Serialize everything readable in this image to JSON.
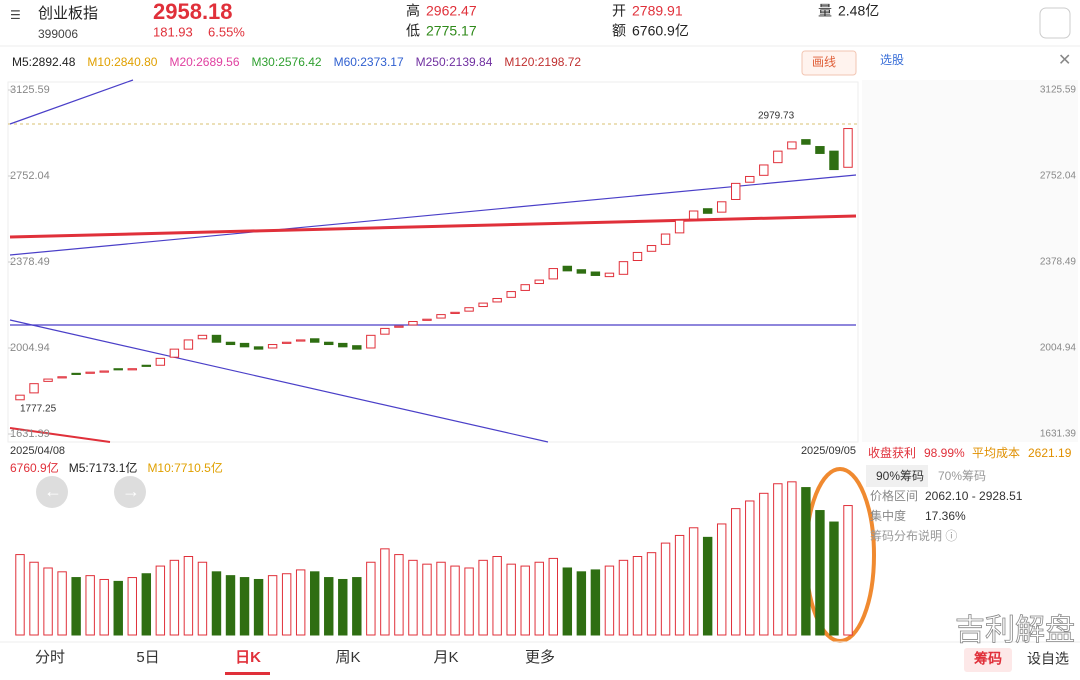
{
  "header": {
    "name": "创业板指",
    "code": "399006",
    "price": "2958.18",
    "change": "181.93",
    "change_pct": "6.55%",
    "high_label": "高",
    "high": "2962.47",
    "low_label": "低",
    "low": "2775.17",
    "open_label": "开",
    "open": "2789.91",
    "amount_label": "额",
    "amount": "6760.9亿",
    "volume_label": "量",
    "volume": "2.48亿"
  },
  "ma_row": [
    "M5:2892.48",
    "M10:2840.80",
    "M20:2689.56",
    "M30:2576.42",
    "M60:2373.17",
    "M250:2139.84",
    "M120:2198.72"
  ],
  "draw_button": "画线",
  "pick_button": "选股",
  "chart_data": {
    "type": "candlestick",
    "x_start": "2025/04/08",
    "x_end": "2025/09/05",
    "annotations": [
      "2979.73",
      "1777.25"
    ],
    "ylim": [
      1631.39,
      3125.59
    ],
    "yticks": [
      1631.39,
      2004.94,
      2378.49,
      2752.04,
      3125.59
    ],
    "open": [
      1780,
      1810,
      1860,
      1875,
      1895,
      1895,
      1900,
      1915,
      1910,
      1930,
      1930,
      1965,
      2000,
      2045,
      2060,
      2030,
      2025,
      2010,
      2005,
      2025,
      2035,
      2045,
      2030,
      2025,
      2015,
      2005,
      2065,
      2095,
      2105,
      2125,
      2135,
      2155,
      2165,
      2185,
      2205,
      2225,
      2255,
      2285,
      2305,
      2360,
      2345,
      2335,
      2315,
      2325,
      2385,
      2425,
      2455,
      2505,
      2565,
      2610,
      2595,
      2650,
      2725,
      2755,
      2810,
      2870,
      2910,
      2880,
      2860,
      2789.91
    ],
    "close": [
      1800,
      1850,
      1870,
      1880,
      1890,
      1900,
      1905,
      1910,
      1915,
      1925,
      1960,
      2000,
      2040,
      2060,
      2030,
      2020,
      2010,
      2000,
      2020,
      2030,
      2040,
      2030,
      2020,
      2010,
      2000,
      2060,
      2090,
      2100,
      2120,
      2130,
      2150,
      2160,
      2180,
      2200,
      2220,
      2250,
      2280,
      2300,
      2350,
      2340,
      2330,
      2320,
      2330,
      2380,
      2420,
      2450,
      2500,
      2560,
      2600,
      2590,
      2640,
      2720,
      2750,
      2800,
      2860,
      2900,
      2890,
      2850,
      2780,
      2958.18
    ],
    "up_color": "#e0303a",
    "down_color": "#2f6e12"
  },
  "volume_chart": {
    "type": "bar",
    "labels": [
      "6760.9亿",
      "M5:7173.1亿",
      "M10:7710.5亿"
    ],
    "ylim": [
      0,
      8200
    ],
    "values": [
      4200,
      3800,
      3500,
      3300,
      3000,
      3100,
      2900,
      2800,
      3000,
      3200,
      3600,
      3900,
      4100,
      3800,
      3300,
      3100,
      3000,
      2900,
      3100,
      3200,
      3400,
      3300,
      3000,
      2900,
      3000,
      3800,
      4500,
      4200,
      3900,
      3700,
      3800,
      3600,
      3500,
      3900,
      4100,
      3700,
      3600,
      3800,
      4000,
      3500,
      3300,
      3400,
      3600,
      3900,
      4100,
      4300,
      4800,
      5200,
      5600,
      5100,
      5800,
      6600,
      7000,
      7400,
      7900,
      8000,
      7700,
      6500,
      5900,
      6760.9
    ],
    "up_color": "#e0303a",
    "down_color": "#2f6e12"
  },
  "chips": {
    "profit_label": "收盘获利",
    "profit": "98.99%",
    "cost_label": "平均成本",
    "cost": "2621.19",
    "tab1": "90%筹码",
    "tab2": "70%筹码",
    "range_label": "价格区间",
    "range": "2062.10 - 2928.51",
    "conc_label": "集中度",
    "conc": "17.36%",
    "note": "筹码分布说明 ⓘ"
  },
  "tabs": [
    "分时",
    "5日",
    "日K",
    "周K",
    "月K",
    "更多"
  ],
  "bottom_buttons": [
    "筹码",
    "设自选"
  ],
  "watermark": "吉利解盘"
}
